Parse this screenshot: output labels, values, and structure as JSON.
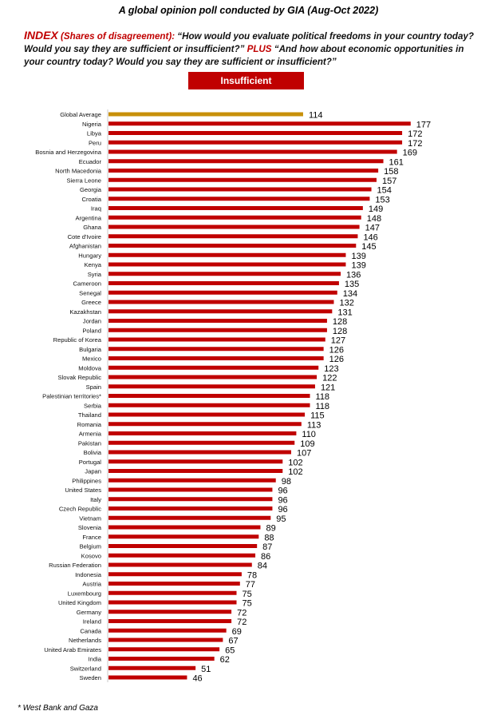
{
  "header": {
    "title": "A global opinion poll conducted by GIA (Aug-Oct 2022)",
    "index_label": "INDEX",
    "index_sub": "(Shares of disagreement):",
    "question1": "“How would you evaluate political freedoms in your country today? Would you say they are sufficient or insufficient?”",
    "plus": "PLUS",
    "question2": "“And how about economic opportunities in your country today?  Would you say they are sufficient or insufficient?”"
  },
  "footnote": "* West Bank and Gaza",
  "colors": {
    "bar": "#c00000",
    "average": "#c8900a"
  },
  "chart_data": {
    "type": "bar",
    "orientation": "horizontal",
    "legend": [
      "Insufficient"
    ],
    "legend_placement": "top-center",
    "grid": false,
    "xlim": [
      0,
      180
    ],
    "categories": [
      "Global Average",
      "Nigeria",
      "Libya",
      "Peru",
      "Bosnia and Herzegovina",
      "Ecuador",
      "North Macedonia",
      "Sierra Leone",
      "Georgia",
      "Croatia",
      "Iraq",
      "Argentina",
      "Ghana",
      "Cote d'Ivoire",
      "Afghanistan",
      "Hungary",
      "Kenya",
      "Syria",
      "Cameroon",
      "Senegal",
      "Greece",
      "Kazakhstan",
      "Jordan",
      "Poland",
      "Republic of Korea",
      "Bulgaria",
      "Mexico",
      "Moldova",
      "Slovak Republic",
      "Spain",
      "Palestinian territories*",
      "Serbia",
      "Thailand",
      "Romania",
      "Armenia",
      "Pakistan",
      "Bolivia",
      "Portugal",
      "Japan",
      "Philippines",
      "United States",
      "Italy",
      "Czech Republic",
      "Vietnam",
      "Slovenia",
      "France",
      "Belgium",
      "Kosovo",
      "Russian Federation",
      "Indonesia",
      "Austria",
      "Luxembourg",
      "United Kingdom",
      "Germany",
      "Ireland",
      "Canada",
      "Netherlands",
      "United Arab Emirates",
      "India",
      "Switzerland",
      "Sweden"
    ],
    "values": [
      114,
      177,
      172,
      172,
      169,
      161,
      158,
      157,
      154,
      153,
      149,
      148,
      147,
      146,
      145,
      139,
      139,
      136,
      135,
      134,
      132,
      131,
      128,
      128,
      127,
      126,
      126,
      123,
      122,
      121,
      118,
      118,
      115,
      113,
      110,
      109,
      107,
      102,
      102,
      98,
      96,
      96,
      96,
      95,
      89,
      88,
      87,
      86,
      84,
      78,
      77,
      75,
      75,
      72,
      72,
      69,
      67,
      65,
      62,
      51,
      46
    ]
  }
}
